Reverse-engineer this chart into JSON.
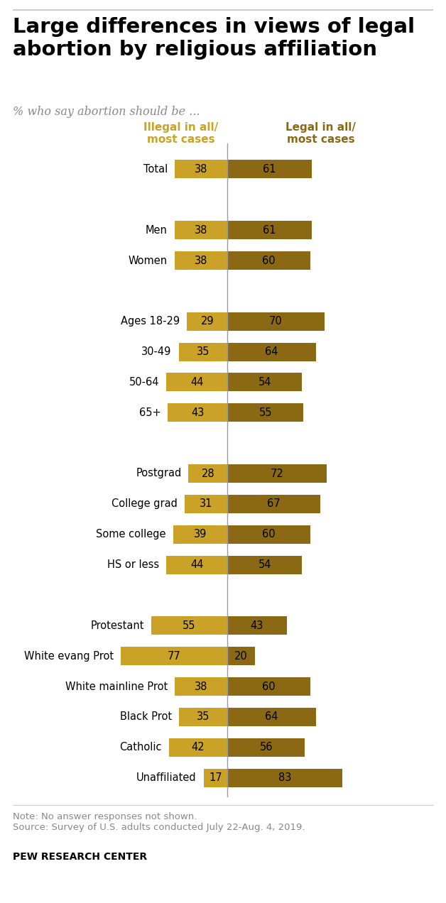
{
  "title": "Large differences in views of legal\nabortion by religious affiliation",
  "subtitle": "% who say abortion should be ...",
  "col1_label": "Illegal in all/\nmost cases",
  "col2_label": "Legal in all/\nmost cases",
  "categories": [
    "Total",
    null,
    "Men",
    "Women",
    null,
    "Ages 18-29",
    "30-49",
    "50-64",
    "65+",
    null,
    "Postgrad",
    "College grad",
    "Some college",
    "HS or less",
    null,
    "Protestant",
    "White evang Prot",
    "White mainline Prot",
    "Black Prot",
    "Catholic",
    "Unaffiliated"
  ],
  "illegal_values": [
    38,
    null,
    38,
    38,
    null,
    29,
    35,
    44,
    43,
    null,
    28,
    31,
    39,
    44,
    null,
    55,
    77,
    38,
    35,
    42,
    17
  ],
  "legal_values": [
    61,
    null,
    61,
    60,
    null,
    70,
    64,
    54,
    55,
    null,
    72,
    67,
    60,
    54,
    null,
    43,
    20,
    60,
    64,
    56,
    83
  ],
  "color_illegal": "#C9A227",
  "color_legal": "#8B6914",
  "note": "Note: No answer responses not shown.\nSource: Survey of U.S. adults conducted July 22-Aug. 4, 2019.",
  "source_bold": "PEW RESEARCH CENTER",
  "background_color": "#FFFFFF",
  "divider_line_color": "#999999",
  "title_color": "#000000",
  "subtitle_color": "#888888",
  "label_color": "#000000",
  "bar_text_color": "#000000",
  "top_line_color": "#CCCCCC"
}
